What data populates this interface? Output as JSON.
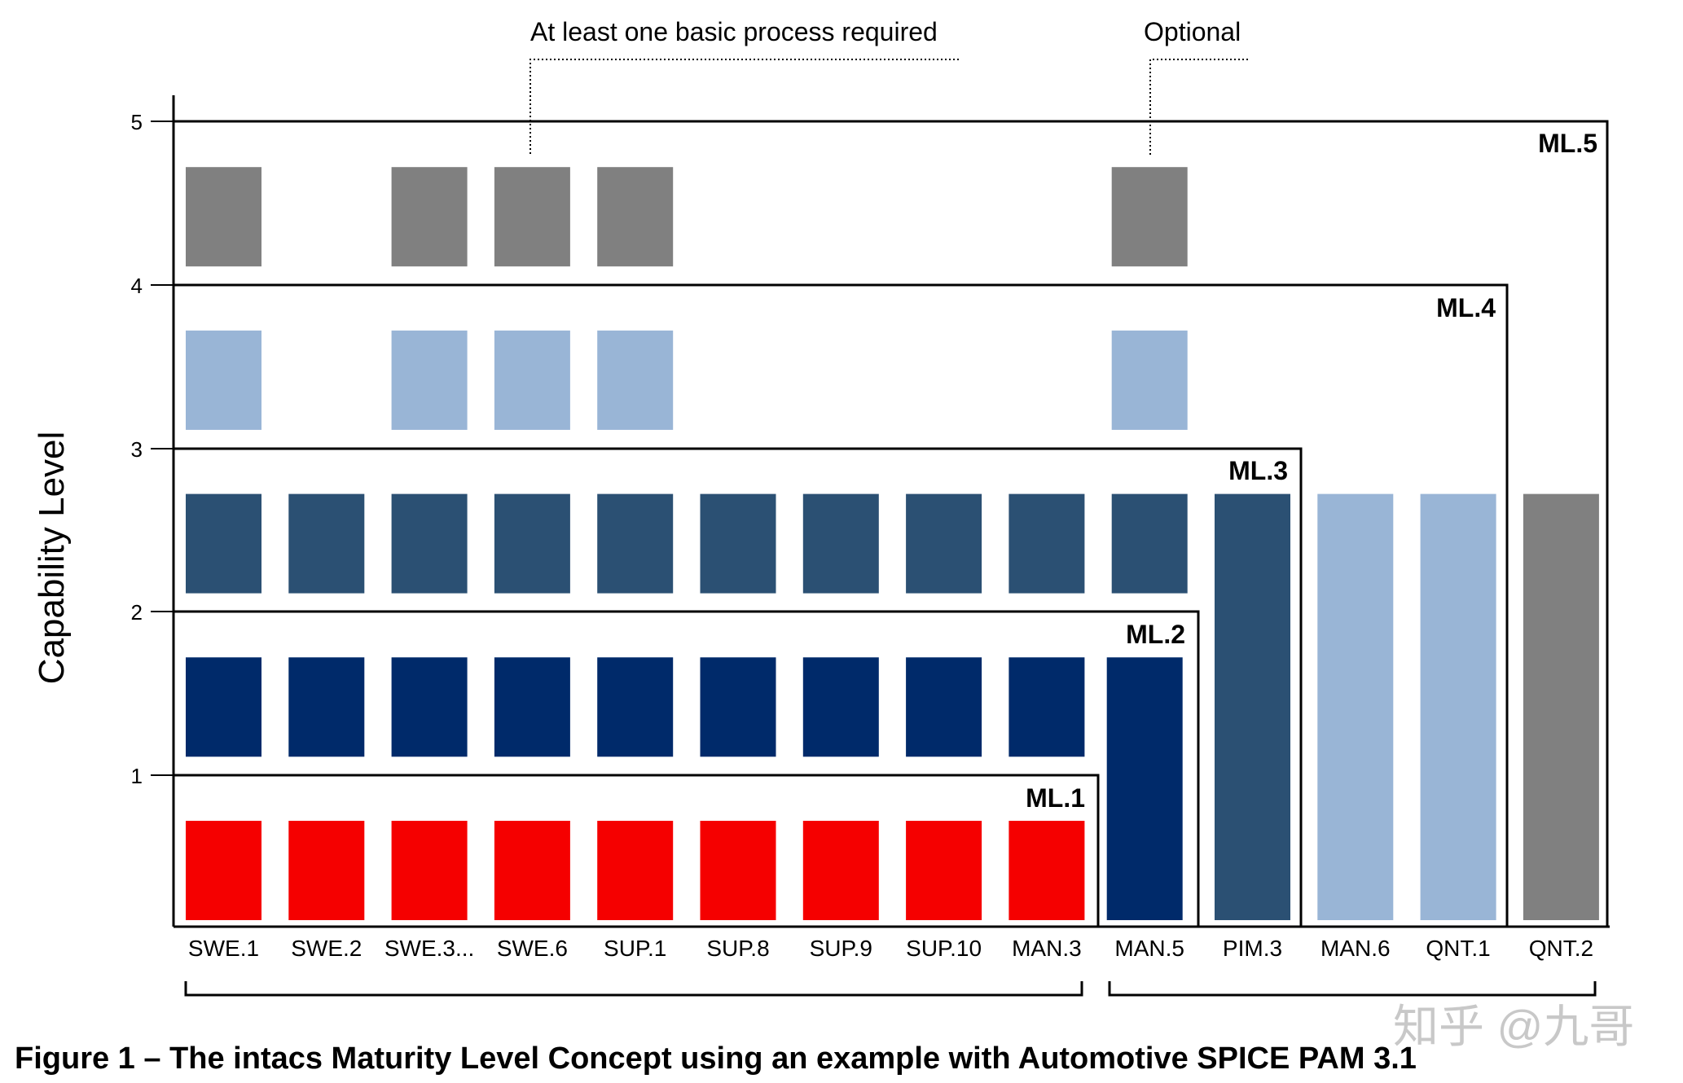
{
  "y_axis_label": "Capability Level",
  "y_ticks": [
    "1",
    "2",
    "3",
    "4",
    "5"
  ],
  "processes": [
    "SWE.1",
    "SWE.2",
    "SWE.3...",
    "SWE.6",
    "SUP.1",
    "SUP.8",
    "SUP.9",
    "SUP.10",
    "MAN.3",
    "MAN.5",
    "PIM.3",
    "MAN.6",
    "QNT.1",
    "QNT.2"
  ],
  "maturity_levels": [
    "ML.1",
    "ML.2",
    "ML.3",
    "ML.4",
    "ML.5"
  ],
  "annotations": {
    "basic": "At least one basic process required",
    "optional": "Optional"
  },
  "caption": "Figure 1 – The intacs Maturity Level Concept using an example with Automotive SPICE PAM 3.1",
  "watermark": "知乎 @九哥",
  "colors": {
    "level1": "#f50000",
    "level2": "#002a6a",
    "level3": "#2b5073",
    "level4": "#99b5d6",
    "level5": "#808080"
  },
  "blocks": [
    {
      "process": "SWE.1",
      "levels": [
        1,
        2,
        3,
        4,
        5
      ]
    },
    {
      "process": "SWE.2",
      "levels": [
        1,
        2,
        3
      ]
    },
    {
      "process": "SWE.3...",
      "levels": [
        1,
        2,
        3,
        4,
        5
      ]
    },
    {
      "process": "SWE.6",
      "levels": [
        1,
        2,
        3,
        4,
        5
      ]
    },
    {
      "process": "SUP.1",
      "levels": [
        1,
        2,
        3,
        4,
        5
      ]
    },
    {
      "process": "SUP.8",
      "levels": [
        1,
        2,
        3
      ]
    },
    {
      "process": "SUP.9",
      "levels": [
        1,
        2,
        3
      ]
    },
    {
      "process": "SUP.10",
      "levels": [
        1,
        2,
        3
      ]
    },
    {
      "process": "MAN.3",
      "levels": [
        1,
        2,
        3
      ]
    },
    {
      "process": "MAN.5",
      "levels": [
        3,
        4,
        5
      ]
    }
  ],
  "tall_bars": [
    {
      "process": "MAN.5",
      "from": 0,
      "to": 2,
      "color_level": 2
    },
    {
      "process": "PIM.3",
      "from": 0,
      "to": 3,
      "color_level": 3
    },
    {
      "process": "MAN.6",
      "from": 0,
      "to": 3,
      "color_level": 4
    },
    {
      "process": "QNT.1",
      "from": 0,
      "to": 3,
      "color_level": 4
    },
    {
      "process": "QNT.2",
      "from": 0,
      "to": 3,
      "color_level": 5
    }
  ],
  "groups": [
    {
      "from": "SWE.1",
      "to": "MAN.3"
    },
    {
      "from": "MAN.5",
      "to": "QNT.2"
    }
  ]
}
